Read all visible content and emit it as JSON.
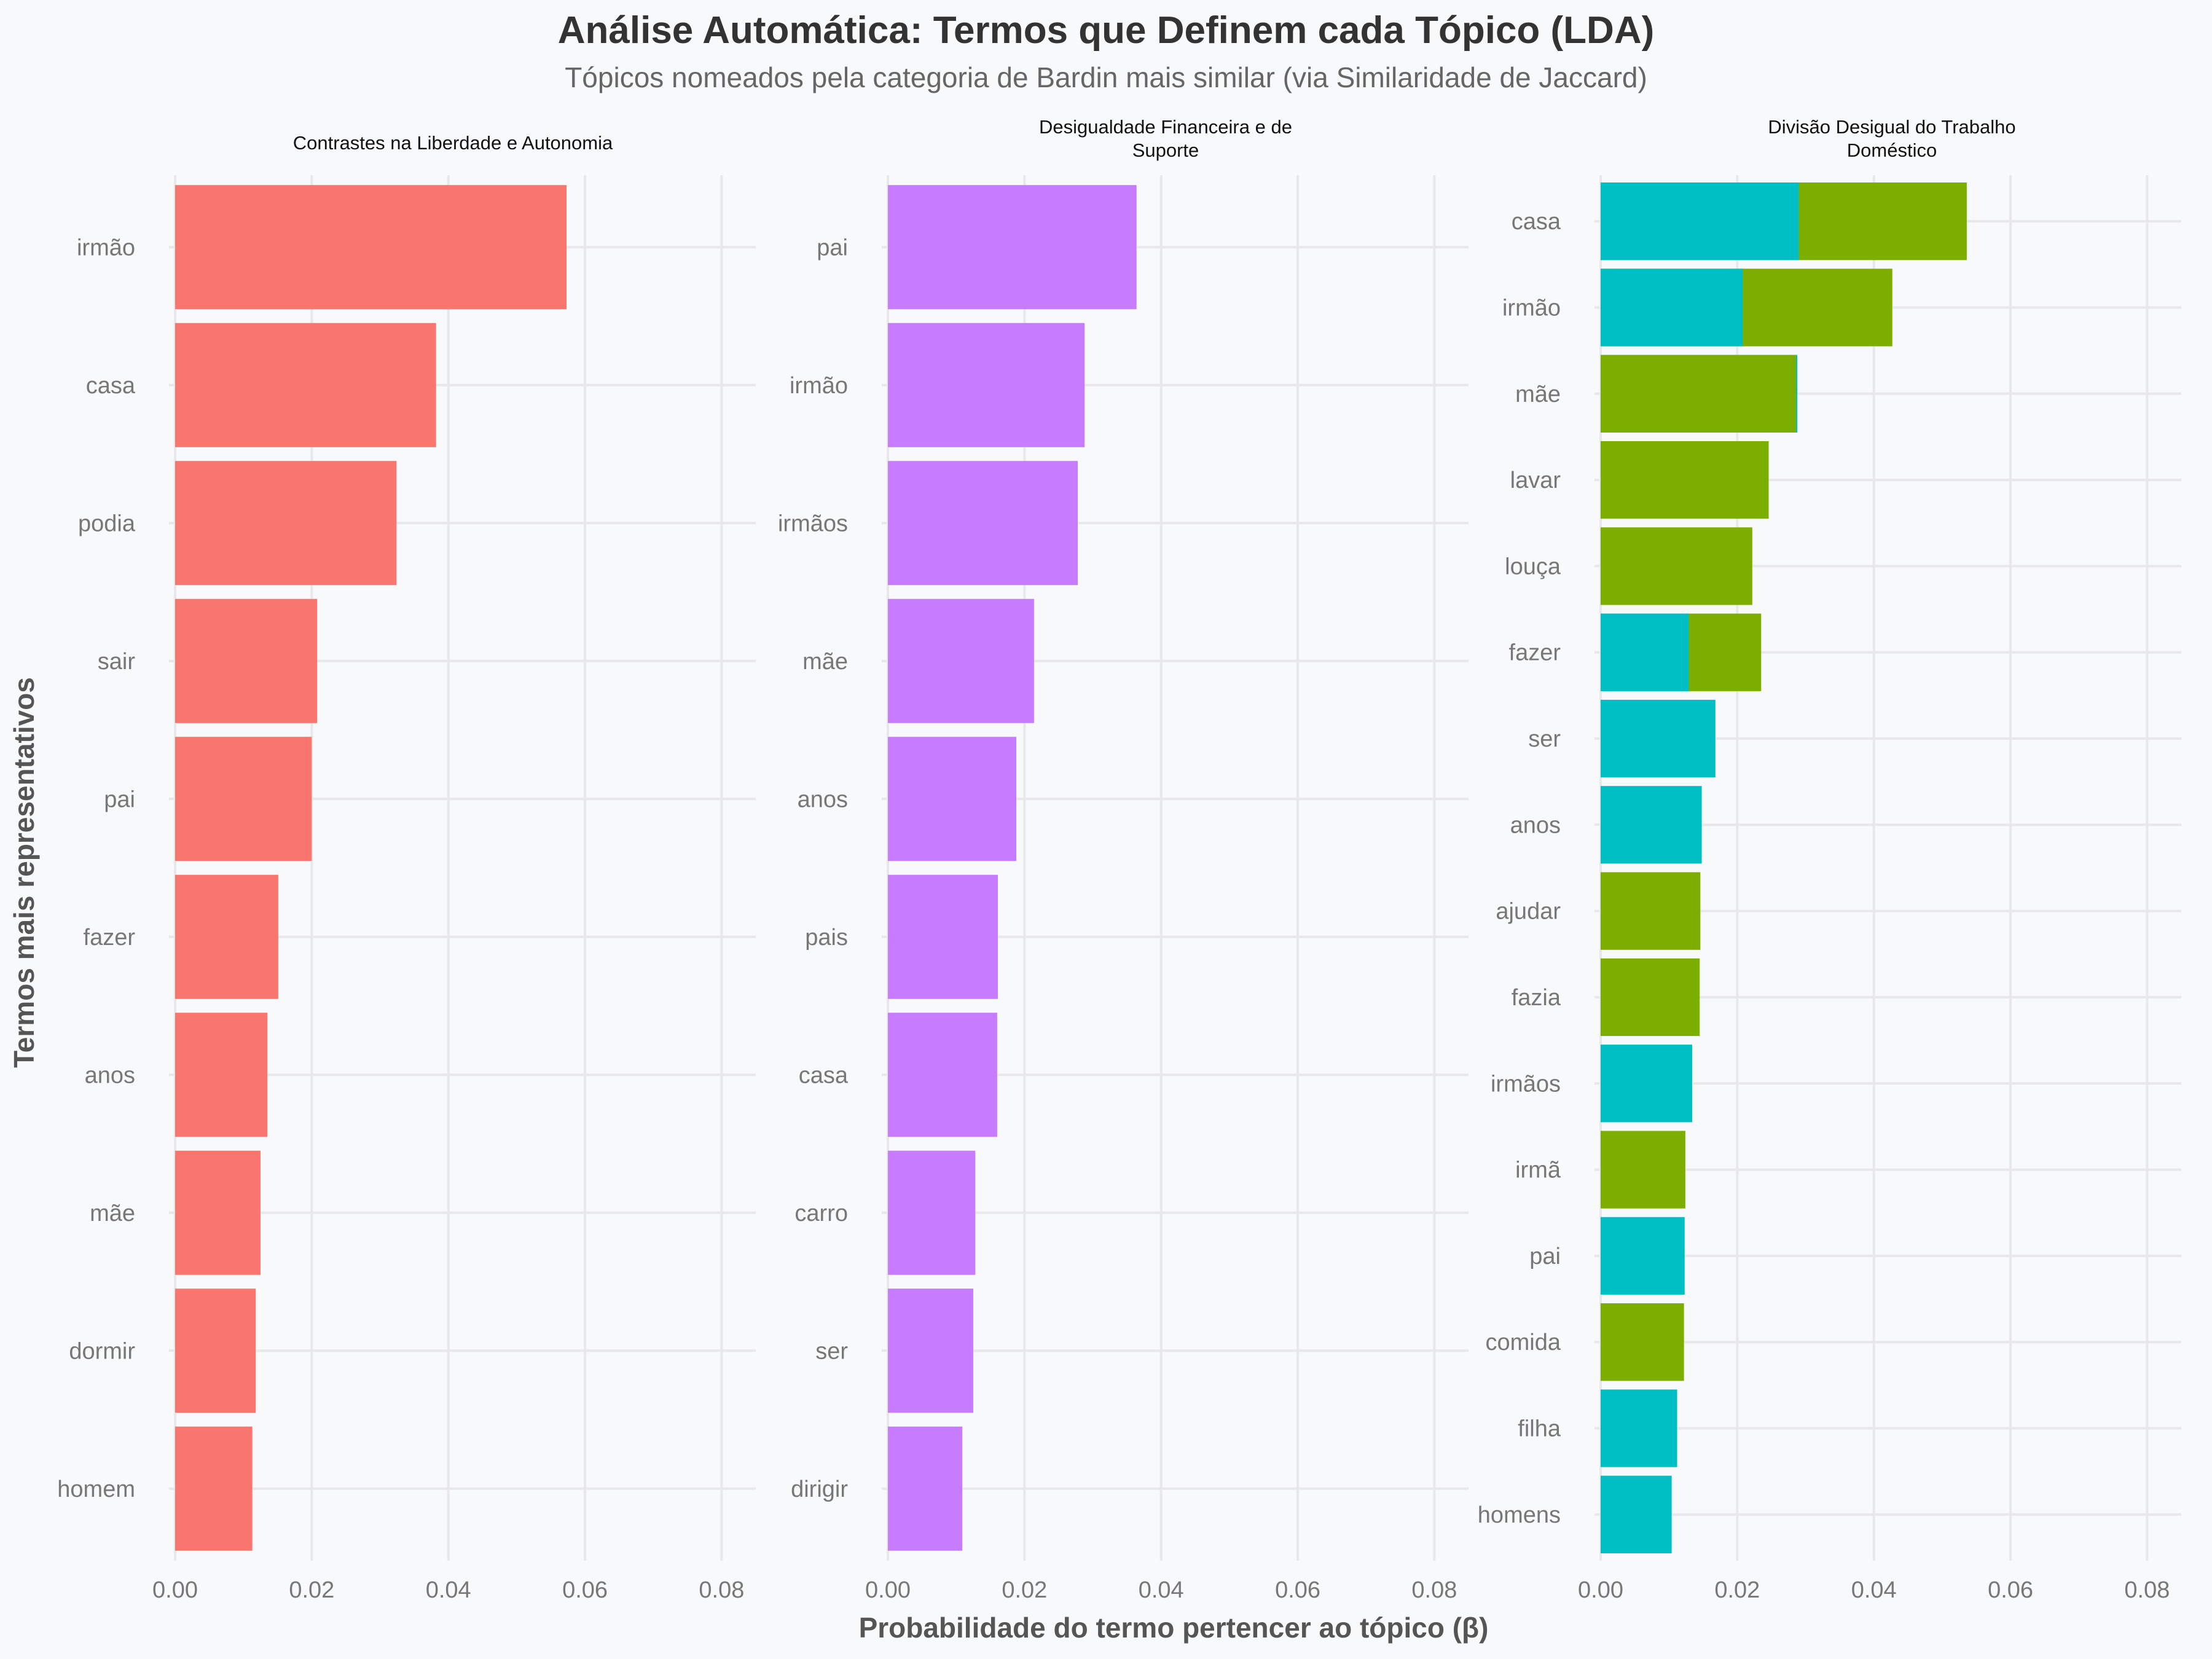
{
  "chart_data": {
    "type": "bar",
    "orientation": "horizontal",
    "title": "Análise Automática: Termos que Definem cada Tópico (LDA)",
    "subtitle": "Tópicos nomeados pela categoria de Bardin mais similar (via Similaridade de Jaccard)",
    "xlabel": "Probabilidade do termo pertencer ao tópico (β)",
    "ylabel": "Termos mais representativos",
    "xlim": [
      0,
      0.085
    ],
    "x_ticks": [
      "0.00",
      "0.02",
      "0.04",
      "0.06",
      "0.08"
    ],
    "grid": true,
    "legend": "none",
    "colors": {
      "red": "#f8766d",
      "purple": "#c77cff",
      "teal": "#00bfc4",
      "green": "#7cae00"
    },
    "facets": [
      {
        "title_lines": [
          "Contrastes na Liberdade e Autonomia"
        ],
        "categories": [
          "irmão",
          "casa",
          "podia",
          "sair",
          "pai",
          "fazer",
          "anos",
          "mãe",
          "dormir",
          "homem"
        ],
        "bars": [
          [
            {
              "value": 0.0573,
              "color": "#f8766d"
            }
          ],
          [
            {
              "value": 0.0382,
              "color": "#f8766d"
            }
          ],
          [
            {
              "value": 0.0324,
              "color": "#f8766d"
            }
          ],
          [
            {
              "value": 0.0208,
              "color": "#f8766d"
            }
          ],
          [
            {
              "value": 0.02,
              "color": "#f8766d"
            }
          ],
          [
            {
              "value": 0.0151,
              "color": "#f8766d"
            }
          ],
          [
            {
              "value": 0.0135,
              "color": "#f8766d"
            }
          ],
          [
            {
              "value": 0.0125,
              "color": "#f8766d"
            }
          ],
          [
            {
              "value": 0.0118,
              "color": "#f8766d"
            }
          ],
          [
            {
              "value": 0.0113,
              "color": "#f8766d"
            }
          ]
        ]
      },
      {
        "title_lines": [
          "Desigualdade Financeira e de",
          "Suporte"
        ],
        "categories": [
          "pai",
          "irmão",
          "irmãos",
          "mãe",
          "anos",
          "pais",
          "casa",
          "carro",
          "ser",
          "dirigir"
        ],
        "bars": [
          [
            {
              "value": 0.0364,
              "color": "#c77cff"
            }
          ],
          [
            {
              "value": 0.0288,
              "color": "#c77cff"
            }
          ],
          [
            {
              "value": 0.0278,
              "color": "#c77cff"
            }
          ],
          [
            {
              "value": 0.0214,
              "color": "#c77cff"
            }
          ],
          [
            {
              "value": 0.0188,
              "color": "#c77cff"
            }
          ],
          [
            {
              "value": 0.0161,
              "color": "#c77cff"
            }
          ],
          [
            {
              "value": 0.016,
              "color": "#c77cff"
            }
          ],
          [
            {
              "value": 0.0128,
              "color": "#c77cff"
            }
          ],
          [
            {
              "value": 0.0125,
              "color": "#c77cff"
            }
          ],
          [
            {
              "value": 0.0109,
              "color": "#c77cff"
            }
          ]
        ]
      },
      {
        "title_lines": [
          "Divisão Desigual do Trabalho",
          "Doméstico"
        ],
        "categories": [
          "casa",
          "irmão",
          "mãe",
          "lavar",
          "louça",
          "fazer",
          "ser",
          "anos",
          "ajudar",
          "fazia",
          "irmãos",
          "irmã",
          "pai",
          "comida",
          "filha",
          "homens"
        ],
        "bars": [
          [
            {
              "value": 0.029,
              "color": "#00bfc4"
            },
            {
              "value": 0.0536,
              "color": "#7cae00"
            }
          ],
          [
            {
              "value": 0.0208,
              "color": "#00bfc4"
            },
            {
              "value": 0.0427,
              "color": "#7cae00"
            }
          ],
          [
            {
              "value": 0.0288,
              "color": "#00bfc4"
            },
            {
              "value": 0.0286,
              "color": "#7cae00"
            }
          ],
          [
            {
              "value": 0.0246,
              "color": "#7cae00"
            }
          ],
          [
            {
              "value": 0.0222,
              "color": "#7cae00"
            }
          ],
          [
            {
              "value": 0.0129,
              "color": "#00bfc4"
            },
            {
              "value": 0.0235,
              "color": "#7cae00"
            }
          ],
          [
            {
              "value": 0.0168,
              "color": "#00bfc4"
            }
          ],
          [
            {
              "value": 0.0148,
              "color": "#00bfc4"
            }
          ],
          [
            {
              "value": 0.0146,
              "color": "#7cae00"
            }
          ],
          [
            {
              "value": 0.0145,
              "color": "#7cae00"
            }
          ],
          [
            {
              "value": 0.0134,
              "color": "#00bfc4"
            }
          ],
          [
            {
              "value": 0.0124,
              "color": "#7cae00"
            }
          ],
          [
            {
              "value": 0.0123,
              "color": "#00bfc4"
            }
          ],
          [
            {
              "value": 0.0122,
              "color": "#7cae00"
            }
          ],
          [
            {
              "value": 0.0112,
              "color": "#00bfc4"
            }
          ],
          [
            {
              "value": 0.0104,
              "color": "#00bfc4"
            }
          ]
        ]
      }
    ]
  }
}
